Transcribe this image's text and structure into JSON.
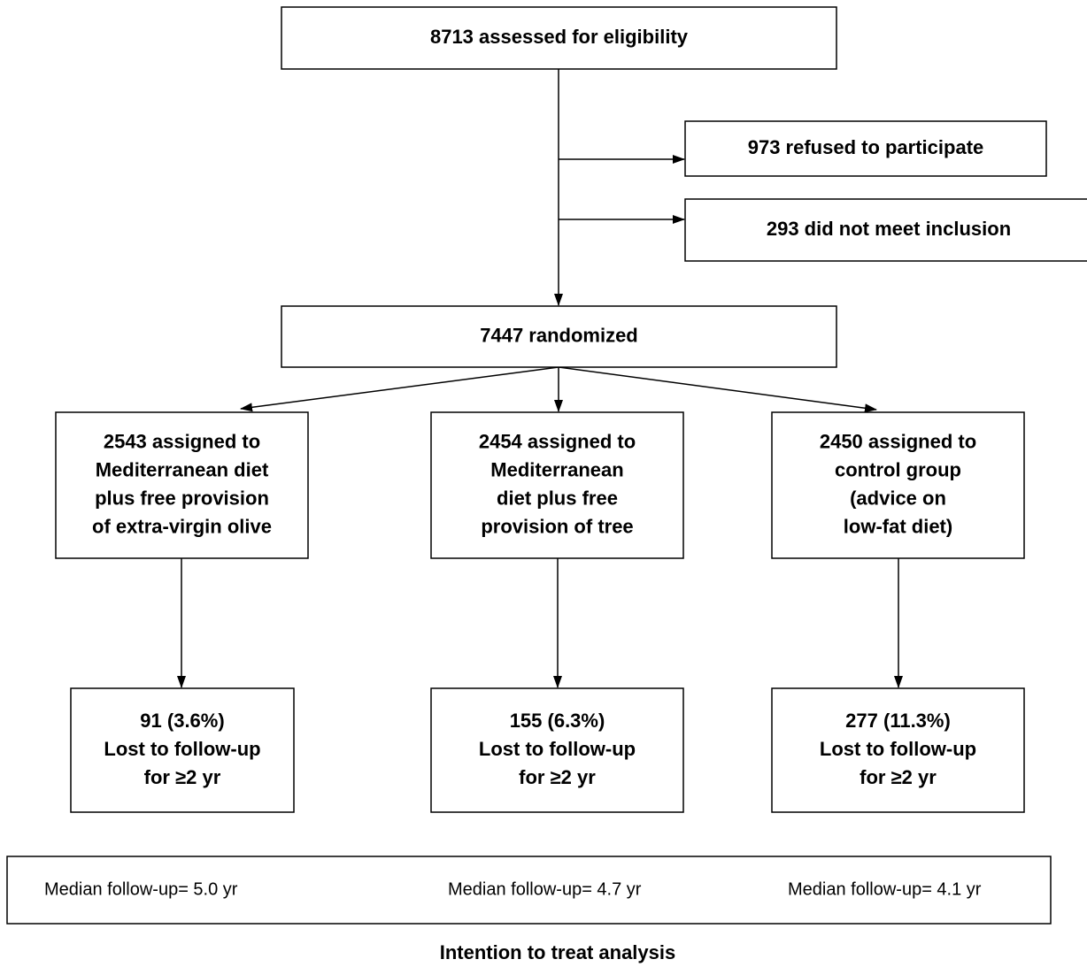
{
  "nodes": [
    {
      "lines": [
        "8713 assessed for eligibility"
      ]
    },
    {
      "lines": [
        "973 refused to participate"
      ]
    },
    {
      "lines": [
        "293 did not meet inclusion"
      ]
    },
    {
      "lines": [
        "7447 randomized"
      ]
    },
    {
      "lines": [
        "2543 assigned to",
        "Mediterranean diet",
        "plus free provision",
        "of extra-virgin olive"
      ]
    },
    {
      "lines": [
        "2454 assigned to",
        "Mediterranean",
        "diet plus free",
        "provision of tree"
      ]
    },
    {
      "lines": [
        "2450 assigned to",
        "control group",
        "(advice on",
        "low-fat diet)"
      ]
    },
    {
      "lines": [
        "91 (3.6%)",
        "Lost to follow-up",
        "for ≥2 yr"
      ]
    },
    {
      "lines": [
        "155 (6.3%)",
        "Lost to follow-up",
        "for ≥2 yr"
      ]
    },
    {
      "lines": [
        "277 (11.3%)",
        "Lost to follow-up",
        "for ≥2 yr"
      ]
    }
  ],
  "follow_up": [
    "Median follow-up= 5.0 yr",
    "Median follow-up= 4.7 yr",
    "Median follow-up= 4.1 yr"
  ],
  "footer": "Intention to treat analysis"
}
